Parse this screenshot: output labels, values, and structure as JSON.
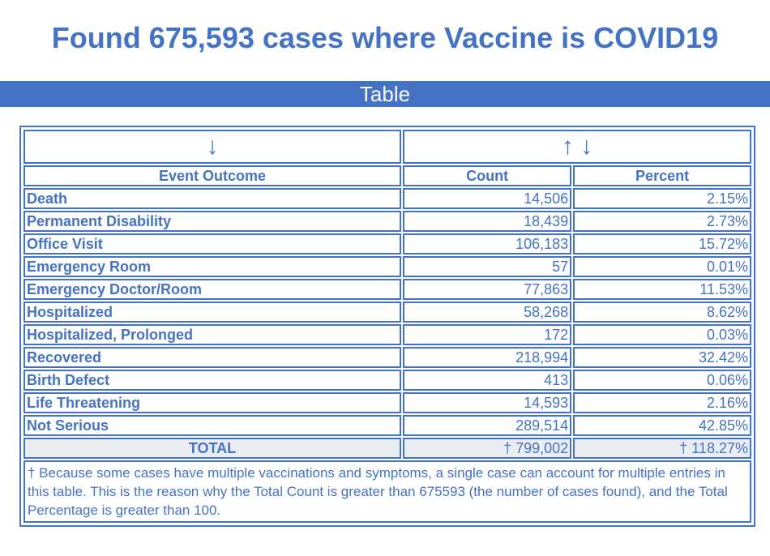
{
  "title": "Found 675,593 cases where Vaccine is COVID19",
  "section": "Table",
  "sort_icons": {
    "col1": "↓",
    "col2": "↑ ↓"
  },
  "headers": [
    "Event Outcome",
    "Count",
    "Percent"
  ],
  "rows": [
    [
      "Death",
      "14,506",
      "2.15%"
    ],
    [
      "Permanent Disability",
      "18,439",
      "2.73%"
    ],
    [
      "Office Visit",
      "106,183",
      "15.72%"
    ],
    [
      "Emergency Room",
      "57",
      "0.01%"
    ],
    [
      "Emergency Doctor/Room",
      "77,863",
      "11.53%"
    ],
    [
      "Hospitalized",
      "58,268",
      "8.62%"
    ],
    [
      "Hospitalized, Prolonged",
      "172",
      "0.03%"
    ],
    [
      "Recovered",
      "218,994",
      "32.42%"
    ],
    [
      "Birth Defect",
      "413",
      "0.06%"
    ],
    [
      "Life Threatening",
      "14,593",
      "2.16%"
    ],
    [
      "Not Serious",
      "289,514",
      "42.85%"
    ]
  ],
  "total": [
    "TOTAL",
    "† 799,002",
    "† 118.27%"
  ],
  "footnote": "† Because some cases have multiple vaccinations and symptoms, a single case can account for multiple entries in this table. This is the reason why the Total Count is greater than 675593 (the number of cases found), and the Total Percentage is greater than 100."
}
